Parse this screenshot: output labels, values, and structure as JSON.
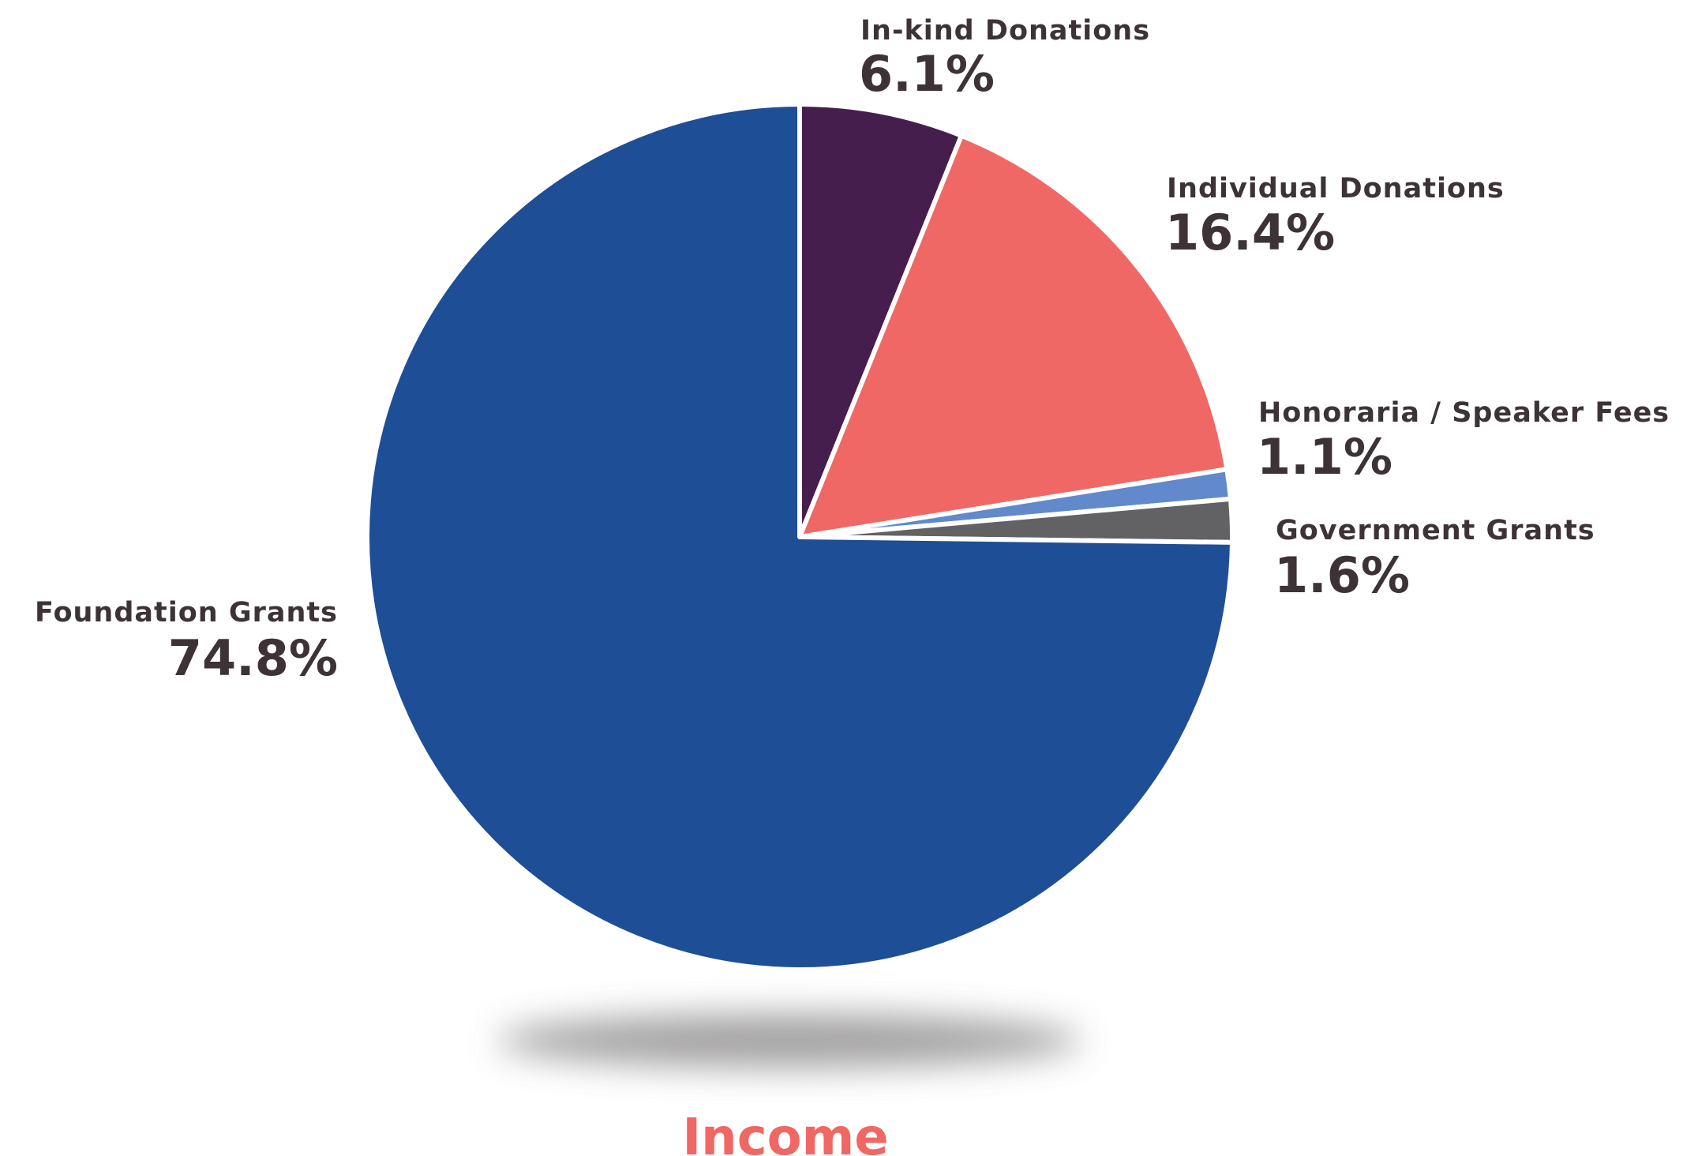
{
  "chart_data": {
    "type": "pie",
    "title": "Income",
    "title_color": "#f06763",
    "start_angle_deg": 0,
    "direction": "clockwise",
    "slice_border_color": "#ffffff",
    "shadow": true,
    "slices": [
      {
        "label": "In-kind Donations",
        "value": 6.1,
        "display": "6.1%",
        "color": "#461e4d"
      },
      {
        "label": "Individual Donations",
        "value": 16.4,
        "display": "16.4%",
        "color": "#f06865"
      },
      {
        "label": "Honoraria / Speaker Fees",
        "value": 1.1,
        "display": "1.1%",
        "color": "#6189cc"
      },
      {
        "label": "Government Grants",
        "value": 1.6,
        "display": "1.6%",
        "color": "#626264"
      },
      {
        "label": "Foundation Grants",
        "value": 74.8,
        "display": "74.8%",
        "color": "#1e4e95"
      }
    ]
  }
}
